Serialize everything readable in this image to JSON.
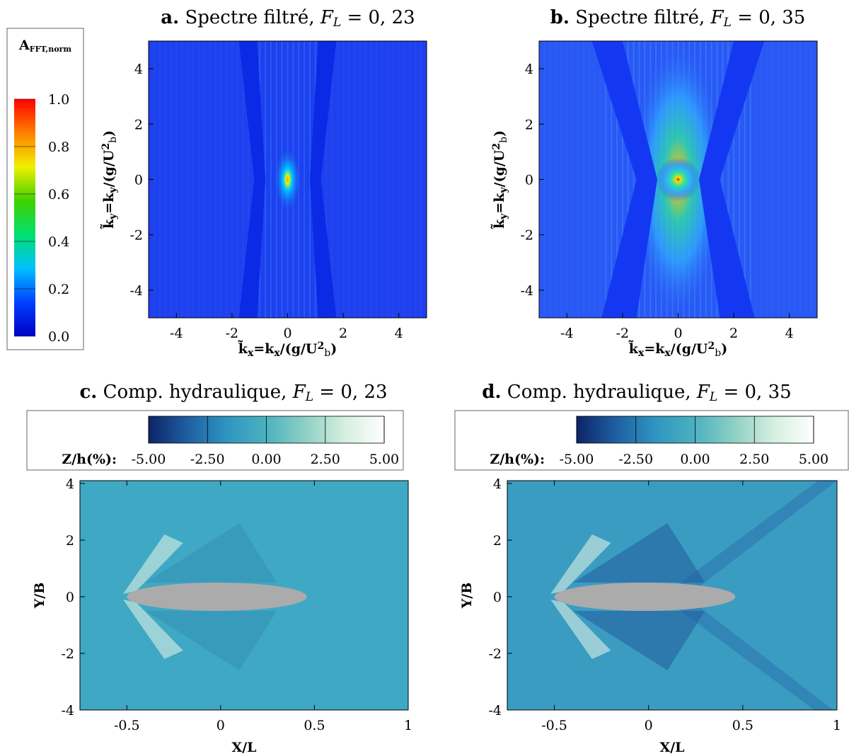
{
  "chart_data": [
    {
      "type": "heatmap",
      "title": [
        [
          "a.",
          "bold"
        ],
        [
          " Spectre filtré, ",
          ""
        ],
        [
          "F",
          "italic"
        ],
        [
          "L",
          "sub italic"
        ],
        [
          " = 0, 23",
          ""
        ]
      ],
      "xlabel": [
        [
          "k̃",
          "bold"
        ],
        [
          "x",
          "sub bold"
        ],
        [
          "=k",
          "bold"
        ],
        [
          "x",
          "sub bold"
        ],
        [
          "/(g/U",
          "bold"
        ],
        [
          "2",
          "sup bold"
        ],
        [
          "b",
          "sub"
        ],
        [
          ")",
          "bold"
        ]
      ],
      "ylabel": [
        [
          "k̃",
          "bold"
        ],
        [
          "y",
          "sub bold"
        ],
        [
          "=k",
          "bold"
        ],
        [
          "y",
          "sub bold"
        ],
        [
          "/(g/U",
          "bold"
        ],
        [
          "2",
          "sup bold"
        ],
        [
          "b",
          "sub"
        ],
        [
          ")",
          "bold"
        ]
      ],
      "xlim": [
        -5,
        5
      ],
      "ylim": [
        -5,
        5
      ],
      "xticks": [
        -4,
        -2,
        0,
        2,
        4
      ],
      "yticks": [
        -4,
        -2,
        0,
        2,
        4
      ],
      "colorbar": {
        "title": [
          [
            "A",
            "bold"
          ],
          [
            "FFT,norm",
            "sub bold"
          ]
        ],
        "lim": [
          0,
          1
        ],
        "ticks": [
          {
            "value": 0,
            "label": "0.0"
          },
          {
            "value": 0.2,
            "label": "0.2"
          },
          {
            "value": 0.4,
            "label": "0.4"
          },
          {
            "value": 0.6,
            "label": "0.6"
          },
          {
            "value": 0.8,
            "label": "0.8"
          },
          {
            "value": 1,
            "label": "1.0"
          }
        ],
        "colors": [
          "#0000c8",
          "#0040ff",
          "#00c0ff",
          "#00e070",
          "#40d000",
          "#f0f000",
          "#ff8000",
          "#ff0000"
        ]
      }
    },
    {
      "type": "heatmap",
      "title": [
        [
          "b.",
          "bold"
        ],
        [
          " Spectre filtré, ",
          ""
        ],
        [
          "F",
          "italic"
        ],
        [
          "L",
          "sub italic"
        ],
        [
          " = 0, 35",
          ""
        ]
      ],
      "xlabel": [
        [
          "k̃",
          "bold"
        ],
        [
          "x",
          "sub bold"
        ],
        [
          "=k",
          "bold"
        ],
        [
          "x",
          "sub bold"
        ],
        [
          "/(g/U",
          "bold"
        ],
        [
          "2",
          "sup bold"
        ],
        [
          "b",
          "sub"
        ],
        [
          ")",
          "bold"
        ]
      ],
      "ylabel": [
        [
          "k̃",
          "bold"
        ],
        [
          "y",
          "sub bold"
        ],
        [
          "=k",
          "bold"
        ],
        [
          "y",
          "sub bold"
        ],
        [
          "/(g/U",
          "bold"
        ],
        [
          "2",
          "sup bold"
        ],
        [
          "b",
          "sub"
        ],
        [
          ")",
          "bold"
        ]
      ],
      "xlim": [
        -5,
        5
      ],
      "ylim": [
        -5,
        5
      ],
      "xticks": [
        -4,
        -2,
        0,
        2,
        4
      ],
      "yticks": [
        -4,
        -2,
        0,
        2,
        4
      ]
    },
    {
      "type": "heatmap",
      "title": [
        [
          "c.",
          "bold"
        ],
        [
          " Comp. hydraulique, ",
          ""
        ],
        [
          "F",
          "italic"
        ],
        [
          "L",
          "sub italic"
        ],
        [
          " = 0, 23",
          ""
        ]
      ],
      "xlabel": [
        [
          "X/L",
          "bold"
        ]
      ],
      "ylabel": [
        [
          "Y/B",
          "bold"
        ]
      ],
      "xlim": [
        -0.75,
        1
      ],
      "ylim": [
        -4,
        4.1
      ],
      "xticks": [
        -0.5,
        0,
        0.5,
        1
      ],
      "yticks": [
        -4,
        -2,
        0,
        2,
        4
      ],
      "colorbar": {
        "title": [
          [
            "Z/h(%):",
            "bold"
          ]
        ],
        "lim": [
          -5,
          5
        ],
        "ticks": [
          {
            "value": -5,
            "label": "-5.00"
          },
          {
            "value": -2.5,
            "label": "-2.50"
          },
          {
            "value": 0,
            "label": "0.00"
          },
          {
            "value": 2.5,
            "label": "2.50"
          },
          {
            "value": 5,
            "label": "5.00"
          }
        ],
        "colors": [
          "#0c2466",
          "#1f5fa3",
          "#2f95c0",
          "#4cb2c0",
          "#8fd0c4",
          "#d6efe0",
          "#ffffff"
        ]
      }
    },
    {
      "type": "heatmap",
      "title": [
        [
          "d.",
          "bold"
        ],
        [
          " Comp. hydraulique, ",
          ""
        ],
        [
          "F",
          "italic"
        ],
        [
          "L",
          "sub italic"
        ],
        [
          " = 0, 35",
          ""
        ]
      ],
      "xlabel": [
        [
          "X/L",
          "bold"
        ]
      ],
      "ylabel": [
        [
          "Y/B",
          "bold"
        ]
      ],
      "xlim": [
        -0.75,
        1
      ],
      "ylim": [
        -4,
        4.1
      ],
      "xticks": [
        -0.5,
        0,
        0.5,
        1
      ],
      "yticks": [
        -4,
        -2,
        0,
        2,
        4
      ],
      "colorbar": {
        "title": [
          [
            "Z/h(%):",
            "bold"
          ]
        ],
        "lim": [
          -5,
          5
        ],
        "ticks": [
          {
            "value": -5,
            "label": "-5.00"
          },
          {
            "value": -2.5,
            "label": "-2.50"
          },
          {
            "value": 0,
            "label": "0.00"
          },
          {
            "value": 2.5,
            "label": "2.50"
          },
          {
            "value": 5,
            "label": "5.00"
          }
        ],
        "colors": [
          "#0c2466",
          "#1f5fa3",
          "#2f95c0",
          "#4cb2c0",
          "#8fd0c4",
          "#d6efe0",
          "#ffffff"
        ]
      }
    }
  ]
}
